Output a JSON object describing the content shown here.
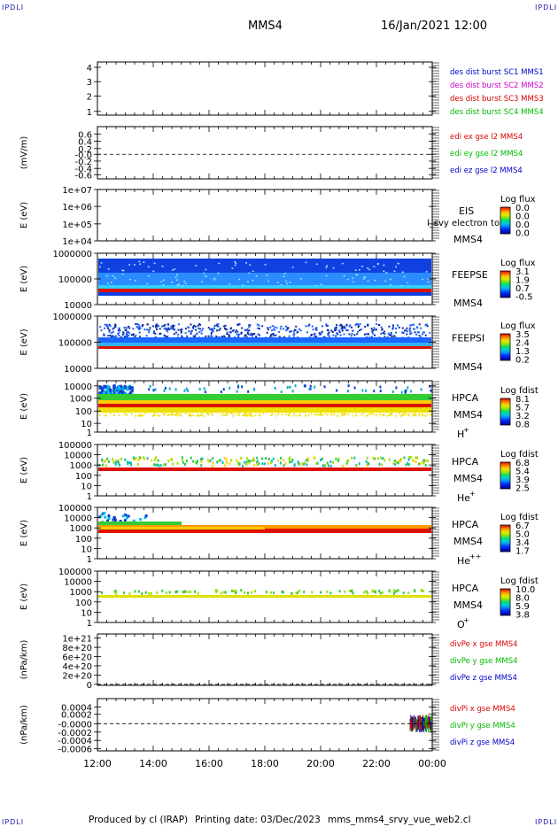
{
  "header": {
    "corner_tag": "IPDLI",
    "spacecraft": "MMS4",
    "datetime": "16/Jan/2021 12:00"
  },
  "footer": {
    "produced_by": "Produced by cl (IRAP)",
    "printing_date": "Printing date: 03/Dec/2023",
    "filename": "mms_mms4_srvy_vue_web2.cl"
  },
  "colors": {
    "blue": "#0000cc",
    "magenta": "#cc00cc",
    "red": "#dd0000",
    "green": "#00bb00"
  },
  "chart_data": [
    {
      "type": "line",
      "panel": "burst",
      "x_ticks": [
        "12:00",
        "14:00",
        "16:00",
        "18:00",
        "20:00",
        "22:00",
        "00:00"
      ],
      "yticks": [
        "4",
        "3",
        "2",
        "1"
      ],
      "ylim": [
        0.6,
        4.4
      ],
      "ylabel": "",
      "series": [
        {
          "name": "des dist burst SC1 MMS1",
          "color": "#0000cc",
          "values": []
        },
        {
          "name": "des dist burst SC2 MMS2",
          "color": "#cc00cc",
          "values": []
        },
        {
          "name": "des dist burst SC3 MMS3",
          "color": "#dd0000",
          "values": []
        },
        {
          "name": "des dist burst SC4 MMS4",
          "color": "#00bb00",
          "values": []
        }
      ]
    },
    {
      "type": "line",
      "panel": "edi",
      "ylabel": "(mV/m)",
      "yticks": [
        "0.6",
        "0.4",
        "0.2",
        "-0.0",
        "-0.2",
        "-0.4",
        "-0.6"
      ],
      "ylim": [
        -0.7,
        0.7
      ],
      "zero_line": true,
      "series": [
        {
          "name": "edi ex gse l2 MMS4",
          "color": "#dd0000",
          "values": []
        },
        {
          "name": "edi ey gse l2 MMS4",
          "color": "#00bb00",
          "values": []
        },
        {
          "name": "edi ez gse l2 MMS4",
          "color": "#0000cc",
          "values": []
        }
      ]
    },
    {
      "type": "heatmap",
      "panel": "eis",
      "ylabel": "E (eV)",
      "yticks": [
        "1e+07",
        "1e+06",
        "1e+05",
        "1e+04"
      ],
      "ylim": [
        10000,
        10000000
      ],
      "yscale": "log",
      "instrument": [
        "EIS",
        "MMS4"
      ],
      "overlay_text": "l_svy electron to",
      "cbar_title": "Log flux",
      "cbar_ticks": [
        "0.0",
        "0.0",
        "0.0",
        "0.0"
      ]
    },
    {
      "type": "heatmap",
      "panel": "feepse",
      "ylabel": "E (eV)",
      "yticks": [
        "1000000",
        "100000",
        "10000"
      ],
      "ylim": [
        10000,
        1000000
      ],
      "yscale": "log",
      "instrument": [
        "FEEPSE",
        "MMS4"
      ],
      "cbar_title": "Log flux",
      "cbar_ticks": [
        "3.1",
        "1.9",
        "0.7",
        "-0.5"
      ]
    },
    {
      "type": "heatmap",
      "panel": "feepsi",
      "ylabel": "E (eV)",
      "yticks": [
        "1000000",
        "100000",
        "10000"
      ],
      "ylim": [
        10000,
        1000000
      ],
      "yscale": "log",
      "instrument": [
        "FEEPSI",
        "MMS4"
      ],
      "cbar_title": "Log flux",
      "cbar_ticks": [
        "3.5",
        "2.4",
        "1.3",
        "0.2"
      ]
    },
    {
      "type": "heatmap",
      "panel": "hpca_h",
      "ylabel": "E (eV)",
      "yticks": [
        "10000",
        "1000",
        "100",
        "10",
        "1"
      ],
      "ylim": [
        1,
        40000
      ],
      "yscale": "log",
      "instrument": [
        "HPCA",
        "MMS4"
      ],
      "species": "H",
      "species_sup": "+",
      "cbar_title": "Log fdist",
      "cbar_ticks": [
        "8.1",
        "5.7",
        "3.2",
        "0.8"
      ]
    },
    {
      "type": "heatmap",
      "panel": "hpca_he",
      "ylabel": "E (eV)",
      "yticks": [
        "100000",
        "10000",
        "1000",
        "100",
        "10",
        "1"
      ],
      "ylim": [
        1,
        100000
      ],
      "yscale": "log",
      "instrument": [
        "HPCA",
        "MMS4"
      ],
      "species": "He",
      "species_sup": "+",
      "cbar_title": "Log fdist",
      "cbar_ticks": [
        "6.8",
        "5.4",
        "3.9",
        "2.5"
      ]
    },
    {
      "type": "heatmap",
      "panel": "hpca_hepp",
      "ylabel": "E (eV)",
      "yticks": [
        "100000",
        "10000",
        "1000",
        "100",
        "10",
        "1"
      ],
      "ylim": [
        1,
        100000
      ],
      "yscale": "log",
      "instrument": [
        "HPCA",
        "MMS4"
      ],
      "species": "He",
      "species_sup": "++",
      "cbar_title": "Log fdist",
      "cbar_ticks": [
        "6.7",
        "5.0",
        "3.4",
        "1.7"
      ]
    },
    {
      "type": "heatmap",
      "panel": "hpca_o",
      "ylabel": "E (eV)",
      "yticks": [
        "100000",
        "10000",
        "1000",
        "100",
        "10",
        "1"
      ],
      "ylim": [
        1,
        100000
      ],
      "yscale": "log",
      "instrument": [
        "HPCA",
        "MMS4"
      ],
      "species": "O",
      "species_sup": "+",
      "cbar_title": "Log fdist",
      "cbar_ticks": [
        "10.0",
        "8.0",
        "5.9",
        "3.8"
      ]
    },
    {
      "type": "line",
      "panel": "divpe",
      "ylabel": "(nPa/km)",
      "yticks": [
        "1e+21",
        "8e+20",
        "6e+20",
        "4e+20",
        "2e+20",
        "0"
      ],
      "ylim": [
        0,
        1.1e+21
      ],
      "zero_line": true,
      "series": [
        {
          "name": "divPe x gse MMS4",
          "color": "#dd0000",
          "values": []
        },
        {
          "name": "divPe y gse MMS4",
          "color": "#00bb00",
          "values": []
        },
        {
          "name": "divPe z gse MMS4",
          "color": "#0000cc",
          "values": []
        }
      ]
    },
    {
      "type": "line",
      "panel": "divpi",
      "ylabel": "(nPa/km)",
      "yticks": [
        "0.0004",
        "0.0002",
        "-0.0000",
        "-0.0002",
        "-0.0004",
        "-0.0006"
      ],
      "ylim": [
        -0.0007,
        0.0005
      ],
      "zero_line": true,
      "series": [
        {
          "name": "divPi x gse MMS4",
          "color": "#dd0000",
          "values": []
        },
        {
          "name": "divPi y gse MMS4",
          "color": "#00bb00",
          "values": []
        },
        {
          "name": "divPi z gse MMS4",
          "color": "#0000cc",
          "values": []
        }
      ]
    }
  ]
}
